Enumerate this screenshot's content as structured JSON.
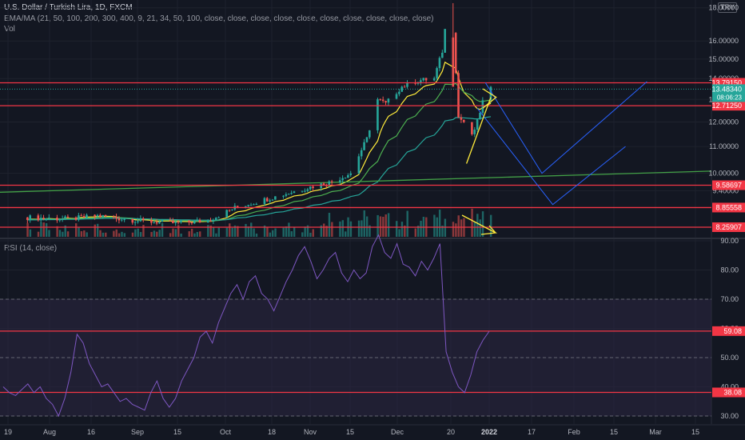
{
  "header": {
    "symbol_line": "U.S. Dollar / Turkish Lira, 1D, FXCM",
    "ema_line": "EMA/MA (21, 50, 100, 200, 300, 400, 9, 21, 34, 50, 100, close, close, close, close, close, close, close, close, close, close)",
    "vol_label": "Vol",
    "rsi_label": "RSI (14, close)",
    "currency": "TRY"
  },
  "colors": {
    "background": "#131722",
    "grid": "#1e222d",
    "up": "#26a69a",
    "down": "#ef5350",
    "level_line": "#f23645",
    "rsi_line": "#7e57c2",
    "rsi_band": "#2a2540",
    "ema_yellow": "#ffeb3b",
    "ema_green": "#4caf50",
    "ema_teal": "#26a69a",
    "ema_long": "#43a047",
    "projection": "#2962ff",
    "arrow_yellow": "#ffeb3b"
  },
  "chart_data": [
    {
      "type": "candlestick",
      "title": "U.S. Dollar / Turkish Lira, 1D, FXCM",
      "price_scale": "log",
      "y_ticks": [
        "18.00000",
        "16.00000",
        "15.00000",
        "14.00000",
        "13.00000",
        "12.00000",
        "11.00000",
        "10.00000",
        "9.40000"
      ],
      "y_tick_values": [
        18,
        16,
        15,
        14,
        13,
        12,
        11,
        10,
        9.4
      ],
      "x_ticks": [
        "19",
        "Aug",
        "16",
        "Sep",
        "15",
        "Oct",
        "18",
        "Nov",
        "15",
        "Dec",
        "20",
        "2022",
        "17",
        "Feb",
        "15",
        "Mar",
        "15"
      ],
      "levels": [
        {
          "label": "13.79150",
          "value": 13.7915
        },
        {
          "label": "12.71250",
          "value": 12.7125
        },
        {
          "label": "9.58697",
          "value": 9.58697
        },
        {
          "label": "8.85558",
          "value": 8.85558
        },
        {
          "label": "8.25907",
          "value": 8.25907
        }
      ],
      "last_price": "13.48340",
      "countdown": "08:06:23",
      "price_path": [
        {
          "date": "2021-07-15",
          "close": 8.55
        },
        {
          "date": "2021-07-30",
          "close": 8.5
        },
        {
          "date": "2021-08-10",
          "close": 8.6
        },
        {
          "date": "2021-08-25",
          "close": 8.45
        },
        {
          "date": "2021-09-08",
          "close": 8.38
        },
        {
          "date": "2021-09-20",
          "close": 8.45
        },
        {
          "date": "2021-09-30",
          "close": 8.85
        },
        {
          "date": "2021-10-15",
          "close": 9.2
        },
        {
          "date": "2021-10-29",
          "close": 9.55
        },
        {
          "date": "2021-11-05",
          "close": 9.7
        },
        {
          "date": "2021-11-12",
          "close": 10.0
        },
        {
          "date": "2021-11-18",
          "close": 11.3
        },
        {
          "date": "2021-11-22",
          "close": 13.0
        },
        {
          "date": "2021-11-25",
          "close": 12.8
        },
        {
          "date": "2021-12-01",
          "close": 13.6
        },
        {
          "date": "2021-12-07",
          "close": 13.9
        },
        {
          "date": "2021-12-13",
          "close": 14.0
        },
        {
          "date": "2021-12-17",
          "close": 15.9
        },
        {
          "date": "2021-12-20",
          "close": 16.6
        },
        {
          "date": "2021-12-22",
          "close": 12.2
        },
        {
          "date": "2021-12-24",
          "close": 12.0
        },
        {
          "date": "2021-12-27",
          "close": 11.4
        },
        {
          "date": "2021-12-29",
          "close": 12.0
        },
        {
          "date": "2021-12-31",
          "close": 12.9
        },
        {
          "date": "2022-01-03",
          "close": 13.48
        }
      ]
    },
    {
      "type": "line",
      "title": "RSI (14, close)",
      "y_ticks": [
        "90.00",
        "80.00",
        "70.00",
        "60.00",
        "50.00",
        "40.00",
        "30.00"
      ],
      "y_tick_values": [
        90,
        80,
        70,
        60,
        50,
        40,
        30
      ],
      "levels": [
        {
          "label": "59.08",
          "value": 59.08
        },
        {
          "label": "38.08",
          "value": 38.08
        }
      ],
      "bands": [
        70,
        30
      ],
      "series": [
        {
          "values": [
            40,
            38,
            37,
            39,
            41,
            38,
            40,
            36,
            34,
            30,
            36,
            45,
            58,
            55,
            48,
            44,
            40,
            41,
            38,
            35,
            36,
            34,
            33,
            32,
            38,
            42,
            36,
            33,
            36,
            42,
            46,
            50,
            57,
            59,
            55,
            62,
            67,
            72,
            75,
            70,
            76,
            78,
            72,
            70,
            66,
            71,
            76,
            80,
            85,
            88,
            83,
            77,
            80,
            84,
            86,
            79,
            76,
            80,
            77,
            79,
            88,
            92,
            86,
            84,
            89,
            82,
            81,
            78,
            83,
            80,
            84,
            89,
            52,
            45,
            40,
            38,
            44,
            52,
            56,
            59
          ]
        }
      ]
    }
  ]
}
